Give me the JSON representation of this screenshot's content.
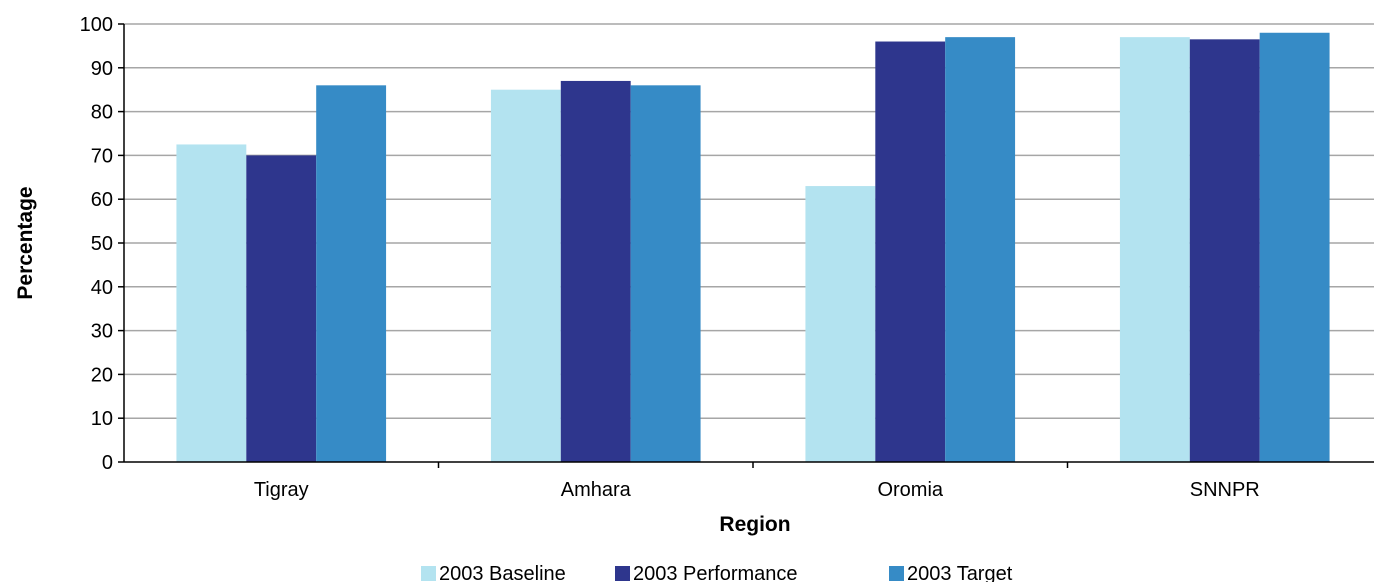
{
  "chart_data": {
    "type": "bar",
    "title": "",
    "xlabel": "Region",
    "ylabel": "Percentage",
    "categories": [
      "Tigray",
      "Amhara",
      "Oromia",
      "SNNPR"
    ],
    "series": [
      {
        "name": "2003 Baseline",
        "color": "#b3e3f0",
        "values": [
          72.5,
          85,
          63,
          97
        ]
      },
      {
        "name": "2003 Performance",
        "color": "#2e368d",
        "values": [
          70,
          87,
          96,
          96.5
        ]
      },
      {
        "name": "2003 Target",
        "color": "#368bc6",
        "values": [
          86,
          86,
          97,
          98
        ]
      }
    ],
    "ylim": [
      0,
      100
    ],
    "yticks": [
      "0",
      "10",
      "20",
      "30",
      "40",
      "50",
      "60",
      "70",
      "80",
      "90",
      "100"
    ],
    "grid": true,
    "legend_position": "bottom"
  }
}
